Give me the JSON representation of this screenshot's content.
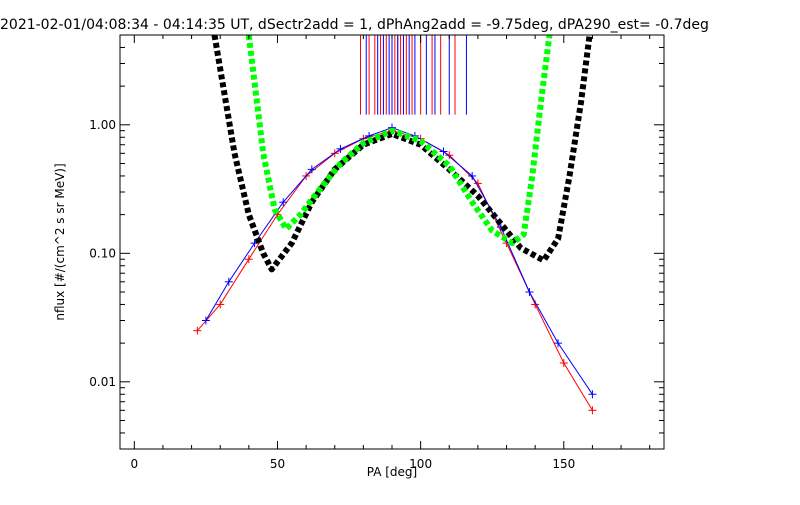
{
  "chart_data": {
    "type": "line",
    "title": "2021-02-01/04:08:34 - 04:14:35 UT, dSectr2add = 1, dPhAng2add = -9.75deg, dPA290_est=  -0.7deg",
    "xlabel": "PA [deg]",
    "ylabel": "nflux [#/(cm^2 s sr MeV)]",
    "xlim": [
      -5,
      185
    ],
    "ylim": [
      0.003,
      5.0
    ],
    "yscale": "log",
    "xticks": [
      0,
      50,
      100,
      150
    ],
    "xtick_labels": [
      "0",
      "50",
      "100",
      "150"
    ],
    "yticks": [
      0.01,
      0.1,
      1.0
    ],
    "ytick_labels": [
      "0.01",
      "0.10",
      "1.00"
    ],
    "grid": false,
    "legend": "none",
    "colors": {
      "red_series": "#ff0000",
      "blue_series": "#0000ff",
      "black_fit": "#000000",
      "green_fit": "#00ff00"
    },
    "series": [
      {
        "color": "red",
        "points": [
          [
            22,
            0.025
          ],
          [
            30,
            0.04
          ],
          [
            40,
            0.09
          ],
          [
            50,
            0.2
          ],
          [
            60,
            0.4
          ],
          [
            70,
            0.6
          ],
          [
            80,
            0.78
          ],
          [
            90,
            0.9
          ],
          [
            100,
            0.78
          ],
          [
            110,
            0.58
          ],
          [
            120,
            0.35
          ],
          [
            130,
            0.12
          ],
          [
            140,
            0.04
          ],
          [
            150,
            0.014
          ],
          [
            160,
            0.006
          ]
        ]
      },
      {
        "color": "blue",
        "points": [
          [
            25,
            0.03
          ],
          [
            33,
            0.06
          ],
          [
            42,
            0.12
          ],
          [
            52,
            0.25
          ],
          [
            62,
            0.45
          ],
          [
            72,
            0.65
          ],
          [
            82,
            0.82
          ],
          [
            90,
            0.95
          ],
          [
            98,
            0.82
          ],
          [
            108,
            0.62
          ],
          [
            118,
            0.4
          ],
          [
            128,
            0.16
          ],
          [
            138,
            0.05
          ],
          [
            148,
            0.02
          ],
          [
            160,
            0.008
          ]
        ]
      },
      {
        "color": "black",
        "style": "dashed-thick",
        "points": [
          [
            28,
            5.0
          ],
          [
            35,
            0.6
          ],
          [
            40,
            0.2
          ],
          [
            45,
            0.1
          ],
          [
            48,
            0.075
          ],
          [
            55,
            0.12
          ],
          [
            62,
            0.25
          ],
          [
            70,
            0.45
          ],
          [
            80,
            0.7
          ],
          [
            90,
            0.85
          ],
          [
            100,
            0.7
          ],
          [
            110,
            0.45
          ],
          [
            120,
            0.28
          ],
          [
            128,
            0.17
          ],
          [
            135,
            0.11
          ],
          [
            143,
            0.088
          ],
          [
            148,
            0.13
          ],
          [
            152,
            0.4
          ],
          [
            156,
            1.5
          ],
          [
            159,
            5.0
          ]
        ]
      },
      {
        "color": "green",
        "style": "dashed-thick",
        "points": [
          [
            40,
            5.0
          ],
          [
            45,
            0.6
          ],
          [
            49,
            0.22
          ],
          [
            53,
            0.155
          ],
          [
            58,
            0.2
          ],
          [
            65,
            0.32
          ],
          [
            72,
            0.5
          ],
          [
            80,
            0.72
          ],
          [
            90,
            0.9
          ],
          [
            100,
            0.75
          ],
          [
            110,
            0.48
          ],
          [
            118,
            0.25
          ],
          [
            125,
            0.15
          ],
          [
            132,
            0.12
          ],
          [
            136,
            0.14
          ],
          [
            139,
            0.4
          ],
          [
            142,
            1.5
          ],
          [
            145,
            5.0
          ]
        ]
      }
    ],
    "vertical_markers": {
      "y_range": [
        1.2,
        5.0
      ],
      "red_x": [
        79,
        82,
        84,
        86,
        88,
        90,
        91,
        92,
        93,
        95,
        97,
        100,
        104,
        107,
        112
      ],
      "blue_x": [
        81,
        85,
        87,
        89,
        90,
        92,
        94,
        96,
        98,
        102,
        105,
        110,
        116
      ]
    }
  }
}
